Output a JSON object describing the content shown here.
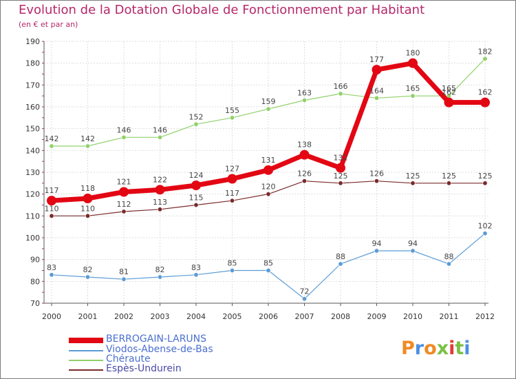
{
  "title": "Evolution de la Dotation Globale de Fonctionnement par Habitant",
  "subtitle": "(en € et par an)",
  "logo": {
    "text": "Proxiti",
    "colors": [
      "#f08a24",
      "#4a90e2",
      "#f08a24",
      "#7bc043",
      "#e03a3a",
      "#7bc043",
      "#4a90e2"
    ]
  },
  "chart_data": {
    "type": "line",
    "title": "Evolution de la Dotation Globale de Fonctionnement par Habitant",
    "ylabel": "(en € et par an)",
    "xlabel": "",
    "ylim": [
      70,
      190
    ],
    "yticks": [
      70,
      80,
      90,
      100,
      110,
      120,
      130,
      140,
      150,
      160,
      170,
      180,
      190
    ],
    "grid": true,
    "legend_position": "bottom-left",
    "categories": [
      "2000",
      "2001",
      "2002",
      "2003",
      "2004",
      "2005",
      "2006",
      "2007",
      "2008",
      "2009",
      "2010",
      "2011",
      "2012"
    ],
    "series": [
      {
        "name": "BERROGAIN-LARUNS",
        "color": "#e30613",
        "values": [
          117,
          118,
          121,
          122,
          124,
          127,
          131,
          138,
          132,
          177,
          180,
          162,
          162
        ]
      },
      {
        "name": "Viodos-Abense-de-Bas",
        "color": "#5b9bd5",
        "values": [
          83,
          82,
          81,
          82,
          83,
          85,
          85,
          72,
          88,
          94,
          94,
          88,
          102
        ]
      },
      {
        "name": "Chéraute",
        "color": "#8fd16a",
        "values": [
          142,
          142,
          146,
          146,
          152,
          155,
          159,
          163,
          166,
          164,
          165,
          165,
          182
        ]
      },
      {
        "name": "Espès-Undurein",
        "color": "#7a2a2a",
        "values": [
          110,
          110,
          112,
          113,
          115,
          117,
          120,
          126,
          125,
          126,
          125,
          125,
          125
        ]
      }
    ]
  }
}
